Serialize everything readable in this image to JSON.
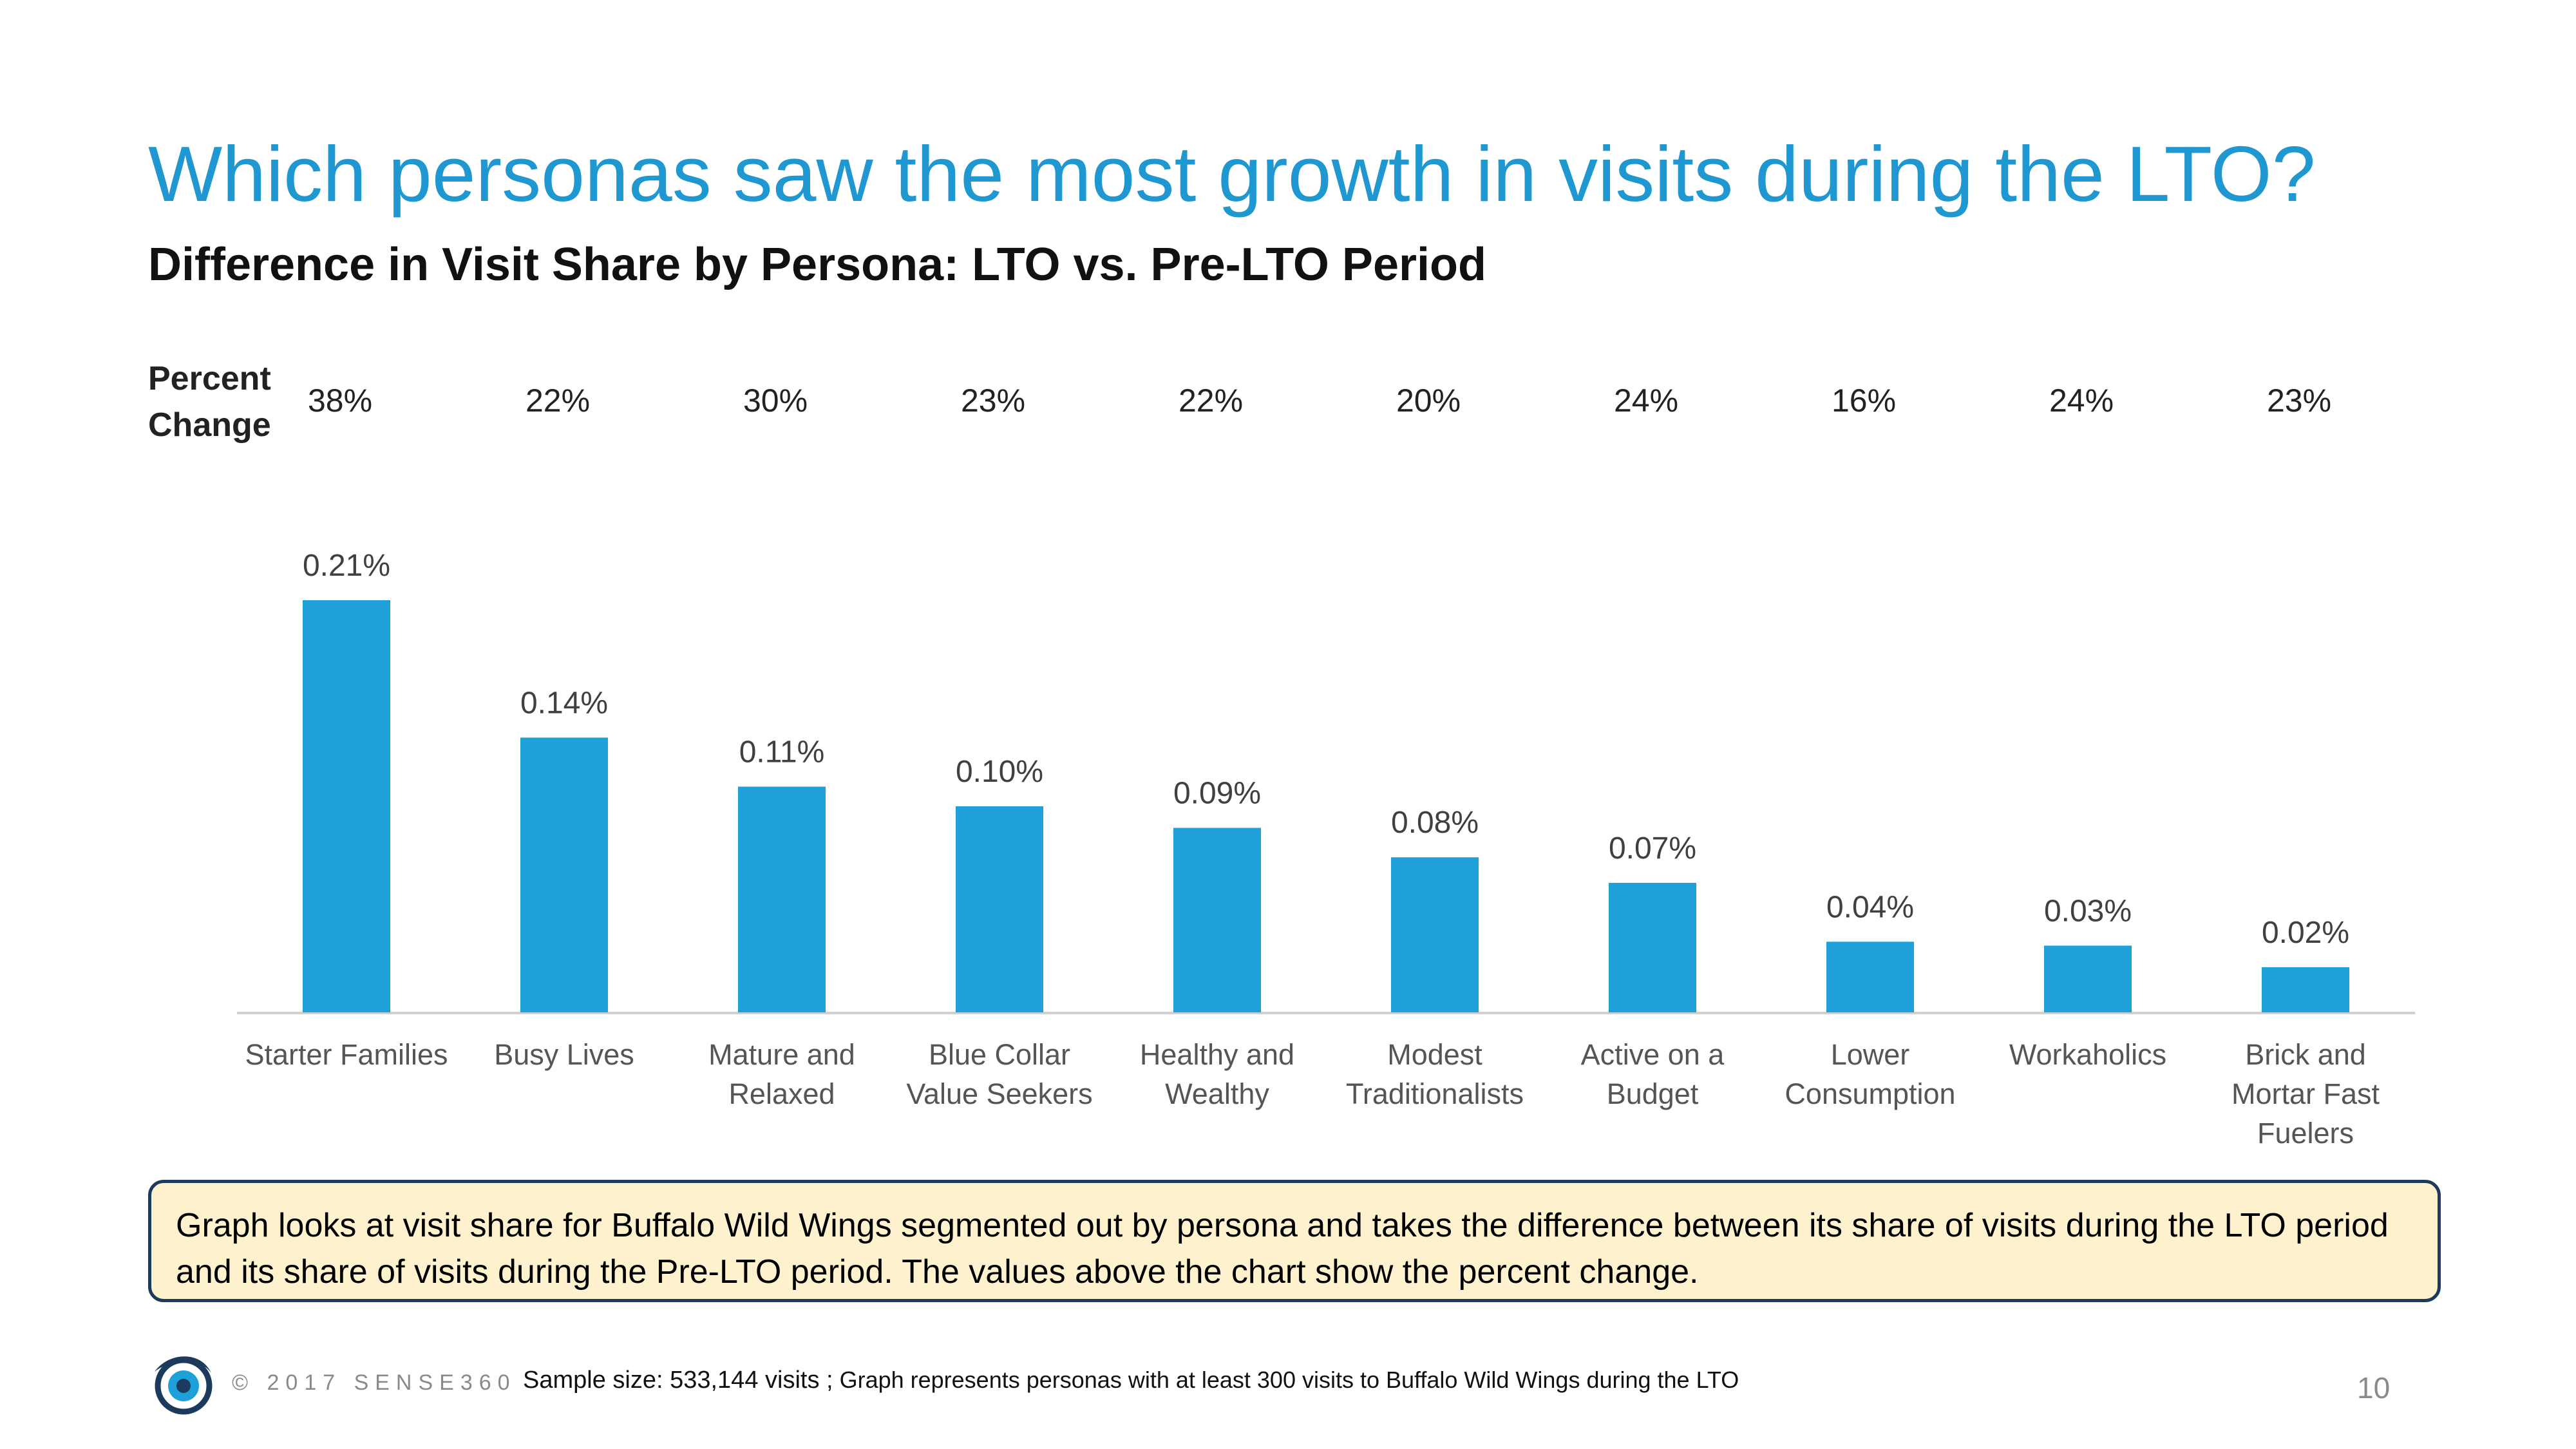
{
  "slide": {
    "title": "Which personas saw the most growth in visits during the LTO?",
    "subtitle": "Difference in Visit Share by Persona: LTO vs. Pre-LTO Period",
    "percent_change_label_line1": "Percent",
    "percent_change_label_line2": "Change",
    "callout_text": "Graph looks at visit share for Buffalo Wild Wings segmented out by persona and takes the difference between its share of visits during the LTO period and its share of visits during the Pre-LTO period.  The values above the chart show the percent change.",
    "copyright": "© 2017 SENSE360",
    "sample_size": "Sample size: 533,144 visits ;",
    "sample_note": " Graph represents personas with at least 300 visits to Buffalo Wild Wings during the LTO",
    "page_number": "10",
    "logo_icon": "sense360-eye-logo-icon"
  },
  "colors": {
    "title": "#1f97d0",
    "bar": "#1ea1d9",
    "callout_bg": "#fdf1ce",
    "callout_border": "#1c3a5b"
  },
  "chart_data": {
    "type": "bar",
    "categories": [
      "Starter Families",
      "Busy Lives",
      "Mature and Relaxed",
      "Blue Collar Value Seekers",
      "Healthy and Wealthy",
      "Modest Traditionalists",
      "Active on a Budget",
      "Lower Consumption",
      "Workaholics",
      "Brick and Mortar Fast Fuelers"
    ],
    "category_lines": [
      [
        "Starter Families"
      ],
      [
        "Busy Lives"
      ],
      [
        "Mature and",
        "Relaxed"
      ],
      [
        "Blue Collar",
        "Value Seekers"
      ],
      [
        "Healthy and",
        "Wealthy"
      ],
      [
        "Modest",
        "Traditionalists"
      ],
      [
        "Active on a",
        "Budget"
      ],
      [
        "Lower",
        "Consumption"
      ],
      [
        "Workaholics"
      ],
      [
        "Brick and",
        "Mortar Fast",
        "Fuelers"
      ]
    ],
    "values": [
      0.21,
      0.14,
      0.115,
      0.105,
      0.094,
      0.079,
      0.066,
      0.036,
      0.034,
      0.023
    ],
    "value_labels": [
      "0.21%",
      "0.14%",
      "0.11%",
      "0.10%",
      "0.09%",
      "0.08%",
      "0.07%",
      "0.04%",
      "0.03%",
      "0.02%"
    ],
    "percent_change": [
      "38%",
      "22%",
      "30%",
      "23%",
      "22%",
      "20%",
      "24%",
      "16%",
      "24%",
      "23%"
    ],
    "ylim": [
      0,
      0.21
    ],
    "grid": false,
    "legend": "none"
  }
}
